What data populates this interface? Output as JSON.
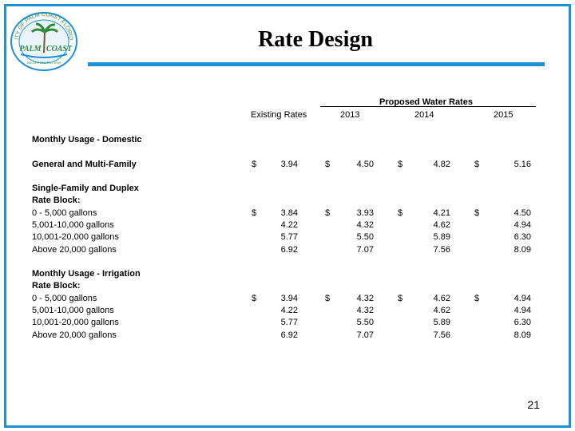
{
  "title": "Rate Design",
  "logo": {
    "ring_text": "CITY OF PALM COAST FLORIDA",
    "name_left": "PALM",
    "name_right": "COAST",
    "incorporated": "INCORPORATED 1999"
  },
  "table": {
    "group_header": "Proposed Water Rates",
    "columns": [
      "Existing Rates",
      "2013",
      "2014",
      "2015"
    ],
    "sections": [
      {
        "label": "Monthly Usage - Domestic",
        "rows": [
          {
            "label": "General and Multi-Family",
            "bold": true,
            "dollar": true,
            "values": [
              "3.94",
              "4.50",
              "4.82",
              "5.16"
            ]
          }
        ]
      },
      {
        "labels": [
          "Single-Family and Duplex",
          "Rate Block:"
        ],
        "rows": [
          {
            "label": "0 - 5,000 gallons",
            "dollar": true,
            "values": [
              "3.84",
              "3.93",
              "4.21",
              "4.50"
            ]
          },
          {
            "label": "5,001-10,000 gallons",
            "values": [
              "4.22",
              "4.32",
              "4.62",
              "4.94"
            ]
          },
          {
            "label": "10,001-20,000 gallons",
            "values": [
              "5.77",
              "5.50",
              "5.89",
              "6.30"
            ]
          },
          {
            "label": "Above 20,000 gallons",
            "values": [
              "6.92",
              "7.07",
              "7.56",
              "8.09"
            ]
          }
        ]
      },
      {
        "labels": [
          "Monthly Usage - Irrigation",
          "Rate Block:"
        ],
        "rows": [
          {
            "label": "0 - 5,000 gallons",
            "dollar": true,
            "values": [
              "3.94",
              "4.32",
              "4.62",
              "4.94"
            ]
          },
          {
            "label": "5,001-10,000 gallons",
            "values": [
              "4.22",
              "4.32",
              "4.62",
              "4.94"
            ]
          },
          {
            "label": "10,001-20,000 gallons",
            "values": [
              "5.77",
              "5.50",
              "5.89",
              "6.30"
            ]
          },
          {
            "label": "Above 20,000 gallons",
            "values": [
              "6.92",
              "7.07",
              "7.56",
              "8.09"
            ]
          }
        ]
      }
    ],
    "currency_symbol": "$"
  },
  "page_number": "21",
  "colors": {
    "accent": "#1f8fd6",
    "logo_green": "#2e8b3a"
  }
}
